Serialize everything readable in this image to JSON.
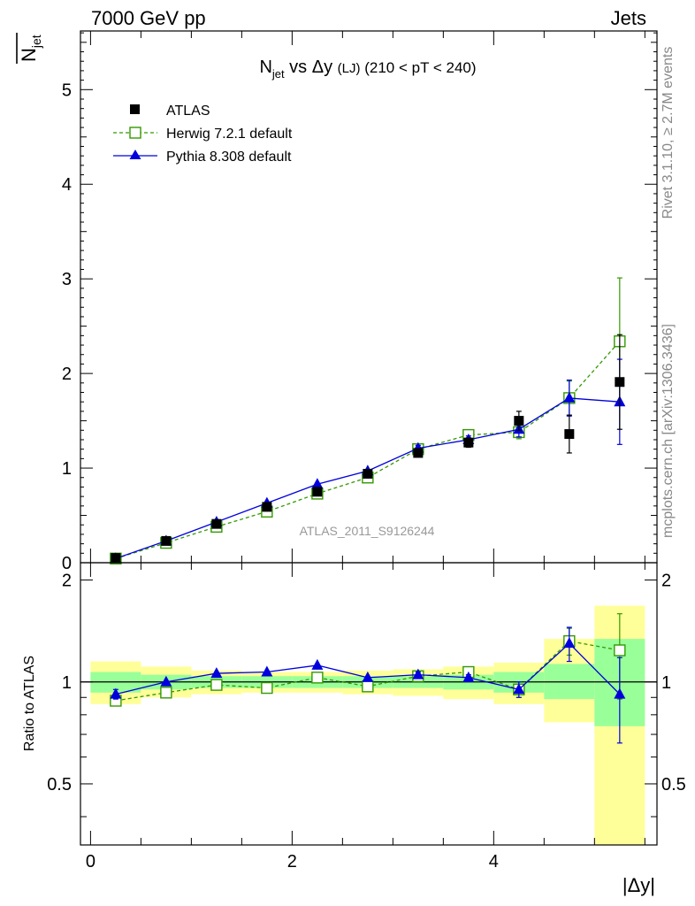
{
  "header": {
    "left": "7000 GeV pp",
    "right": "Jets"
  },
  "side_labels": {
    "rivet": "Rivet 3.1.10, ≥ 2.7M events",
    "mcplots": "mcplots.cern.ch [arXiv:1306.3436]"
  },
  "watermark": "ATLAS_2011_S9126244",
  "chart_data": {
    "type": "scatter",
    "title": {
      "main": "N",
      "main_sub": "jet",
      "vs": " vs Δy ",
      "tag": "(LJ)",
      "range": " (210 < pT < 240)"
    },
    "ylabel": {
      "main": "N",
      "sub": "jet"
    },
    "xlabel": "|Δy|",
    "ratio_ylabel": "Ratio to ATLAS",
    "xlim": [
      -0.1,
      5.62
    ],
    "ylim": [
      0,
      5.62
    ],
    "ratio_ylim": [
      0.33,
      2.25
    ],
    "x_ticks": [
      "0",
      "2",
      "4"
    ],
    "y_ticks": [
      "0",
      "1",
      "2",
      "3",
      "4",
      "5"
    ],
    "ratio_ticks": [
      "0.5",
      "1",
      "2"
    ],
    "bins": [
      0.0,
      0.5,
      1.0,
      1.5,
      2.0,
      2.5,
      3.0,
      3.5,
      4.0,
      4.5,
      5.0,
      5.5
    ],
    "x": [
      0.25,
      0.75,
      1.25,
      1.75,
      2.25,
      2.75,
      3.25,
      3.75,
      4.25,
      4.75,
      5.25
    ],
    "legend": {
      "position": "top-left",
      "atlas": "ATLAS",
      "herwig": "Herwig 7.2.1 default",
      "pythia": "Pythia 8.308 default"
    },
    "colors": {
      "atlas": "#000000",
      "herwig": "#339900",
      "pythia": "#0000dd",
      "band_inner": "#99ff99",
      "band_outer": "#ffff99"
    },
    "series": [
      {
        "name": "ATLAS",
        "values": [
          0.05,
          0.23,
          0.41,
          0.59,
          0.75,
          0.94,
          1.16,
          1.27,
          1.5,
          1.36,
          1.91
        ],
        "errors": [
          0.005,
          0.01,
          0.01,
          0.02,
          0.02,
          0.03,
          0.03,
          0.05,
          0.1,
          0.2,
          0.5
        ]
      },
      {
        "name": "Herwig 7.2.1 default",
        "values": [
          0.044,
          0.21,
          0.38,
          0.54,
          0.73,
          0.9,
          1.2,
          1.35,
          1.38,
          1.74,
          2.34
        ],
        "errors": [
          0.003,
          0.005,
          0.008,
          0.01,
          0.01,
          0.02,
          0.03,
          0.04,
          0.07,
          0.18,
          0.67
        ]
      },
      {
        "name": "Pythia 8.308 default",
        "values": [
          0.045,
          0.23,
          0.43,
          0.63,
          0.83,
          0.97,
          1.21,
          1.3,
          1.41,
          1.74,
          1.7
        ],
        "errors": [
          0.003,
          0.005,
          0.008,
          0.01,
          0.01,
          0.02,
          0.03,
          0.04,
          0.08,
          0.19,
          0.45
        ]
      }
    ],
    "ratio": {
      "herwig": [
        0.88,
        0.93,
        0.98,
        0.96,
        1.03,
        0.97,
        1.04,
        1.07,
        0.95,
        1.32,
        1.24
      ],
      "herwig_err": [
        0.03,
        0.01,
        0.01,
        0.01,
        0.01,
        0.01,
        0.02,
        0.02,
        0.05,
        0.12,
        0.35
      ],
      "pythia": [
        0.92,
        1.0,
        1.06,
        1.07,
        1.12,
        1.03,
        1.05,
        1.03,
        0.95,
        1.3,
        0.92
      ],
      "pythia_err": [
        0.03,
        0.01,
        0.01,
        0.01,
        0.01,
        0.01,
        0.02,
        0.02,
        0.05,
        0.15,
        0.26
      ],
      "band_inner_low": [
        0.93,
        0.95,
        0.96,
        0.96,
        0.96,
        0.96,
        0.96,
        0.95,
        0.93,
        0.89,
        0.74
      ],
      "band_inner_high": [
        1.07,
        1.05,
        1.04,
        1.04,
        1.04,
        1.04,
        1.04,
        1.05,
        1.07,
        1.13,
        1.34
      ],
      "band_outer_low": [
        0.86,
        0.9,
        0.92,
        0.93,
        0.93,
        0.92,
        0.91,
        0.89,
        0.86,
        0.76,
        0.33
      ],
      "band_outer_high": [
        1.15,
        1.11,
        1.08,
        1.07,
        1.07,
        1.08,
        1.09,
        1.11,
        1.14,
        1.34,
        1.68
      ]
    }
  }
}
